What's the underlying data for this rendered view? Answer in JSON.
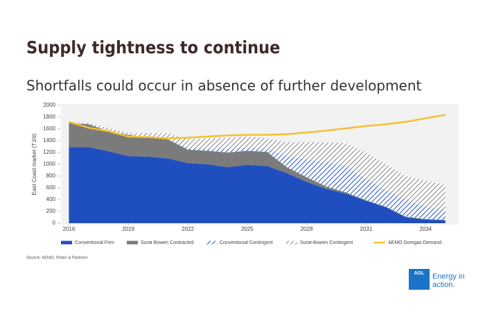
{
  "chart_data": {
    "type": "area",
    "title": "Supply tightness to continue",
    "subtitle": "Shortfalls could occur in absence of further development",
    "y_label": "East Coast market (TJ/d)",
    "source": "Source: AEMO, Poten & Partners",
    "x": [
      2016,
      2017,
      2018,
      2019,
      2020,
      2021,
      2022,
      2023,
      2024,
      2025,
      2026,
      2027,
      2028,
      2029,
      2030,
      2031,
      2032,
      2033,
      2034,
      2035
    ],
    "xlim": [
      2015.6,
      2035.6
    ],
    "xticks": [
      2016,
      2019,
      2022,
      2025,
      2028,
      2031,
      2034
    ],
    "ylim": [
      0,
      2000
    ],
    "yticks": [
      0,
      200,
      400,
      600,
      800,
      1000,
      1200,
      1400,
      1600,
      1800,
      2000
    ],
    "stacked": true,
    "series": [
      {
        "name": "Conventional Firm",
        "color": "#1f4fbf",
        "hatch": false,
        "values": [
          1290,
          1290,
          1220,
          1140,
          1130,
          1100,
          1020,
          1000,
          950,
          990,
          970,
          850,
          700,
          580,
          500,
          380,
          270,
          100,
          60,
          50
        ]
      },
      {
        "name": "Surat Bowen Contracted",
        "color": "#7b7b7b",
        "hatch": false,
        "values": [
          410,
          390,
          340,
          360,
          320,
          320,
          230,
          230,
          250,
          240,
          240,
          100,
          80,
          40,
          20,
          10,
          10,
          10,
          10,
          5
        ]
      },
      {
        "name": "Conventional Contingent",
        "color": "#2a5cc8",
        "hatch": true,
        "values": [
          0,
          0,
          0,
          0,
          10,
          10,
          30,
          40,
          60,
          50,
          50,
          190,
          300,
          420,
          460,
          360,
          280,
          290,
          210,
          175
        ]
      },
      {
        "name": "Surat-Bowen Contingent",
        "color": "#8a8a8a",
        "hatch": true,
        "values": [
          20,
          20,
          60,
          30,
          70,
          100,
          140,
          170,
          190,
          190,
          180,
          230,
          300,
          330,
          380,
          450,
          440,
          400,
          440,
          420
        ]
      },
      {
        "name": "AEMO Domgas Demand",
        "color": "#f2c12e",
        "type": "line",
        "values": [
          1720,
          1620,
          1560,
          1470,
          1460,
          1440,
          1450,
          1470,
          1490,
          1500,
          1500,
          1510,
          1540,
          1570,
          1610,
          1650,
          1680,
          1720,
          1780,
          1840
        ]
      }
    ]
  },
  "logo": {
    "brand": "AGL",
    "tagline": [
      "Energy in",
      "action."
    ]
  }
}
